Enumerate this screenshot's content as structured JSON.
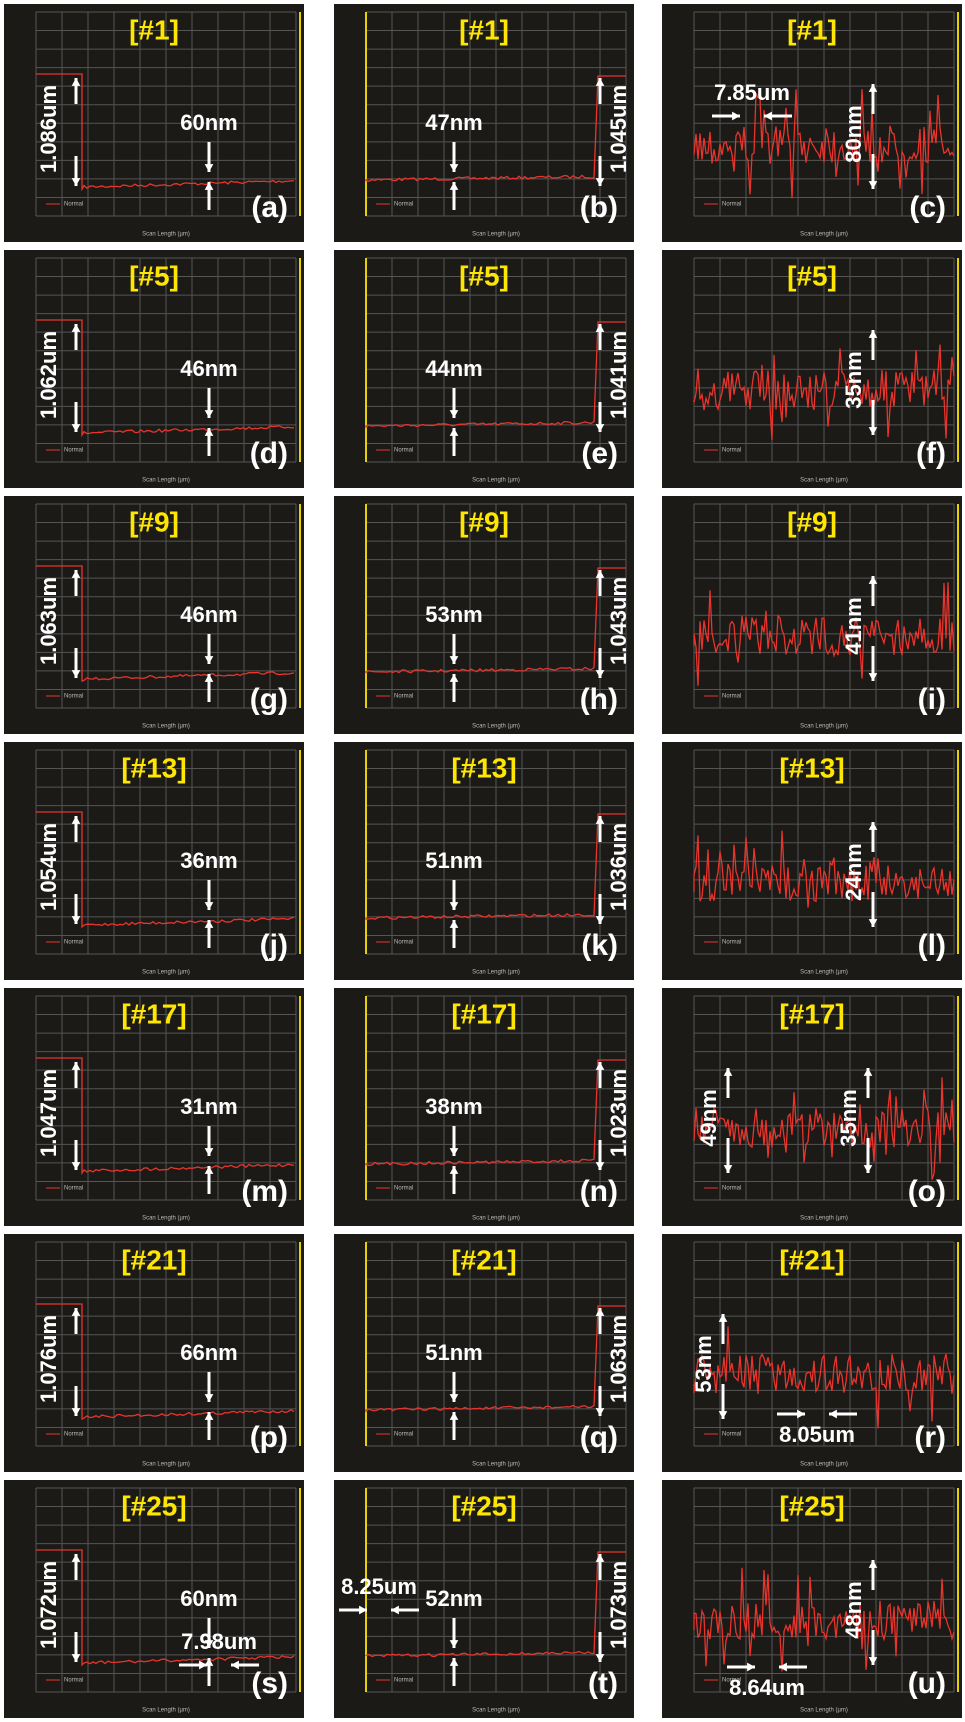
{
  "legend": "Normal",
  "x_axis_label": "Scan Length (µm)",
  "panels": [
    {
      "label": "(a)",
      "sample": "[#1]",
      "step": "1.086um",
      "roughness": [
        "60nm"
      ]
    },
    {
      "label": "(b)",
      "sample": "[#1]",
      "step": "1.045um",
      "roughness": [
        "47nm"
      ]
    },
    {
      "label": "(c)",
      "sample": "[#1]",
      "roughness": [
        "80nm"
      ],
      "width": "7.85um"
    },
    {
      "label": "(d)",
      "sample": "[#5]",
      "step": "1.062um",
      "roughness": [
        "46nm"
      ]
    },
    {
      "label": "(e)",
      "sample": "[#5]",
      "step": "1.041um",
      "roughness": [
        "44nm"
      ]
    },
    {
      "label": "(f)",
      "sample": "[#5]",
      "roughness": [
        "35nm"
      ]
    },
    {
      "label": "(g)",
      "sample": "[#9]",
      "step": "1.063um",
      "roughness": [
        "46nm"
      ]
    },
    {
      "label": "(h)",
      "sample": "[#9]",
      "step": "1.043um",
      "roughness": [
        "53nm"
      ]
    },
    {
      "label": "(i)",
      "sample": "[#9]",
      "roughness": [
        "41nm"
      ]
    },
    {
      "label": "(j)",
      "sample": "[#13]",
      "step": "1.054um",
      "roughness": [
        "36nm"
      ]
    },
    {
      "label": "(k)",
      "sample": "[#13]",
      "step": "1.036um",
      "roughness": [
        "51nm"
      ]
    },
    {
      "label": "(l)",
      "sample": "[#13]",
      "roughness": [
        "24nm"
      ]
    },
    {
      "label": "(m)",
      "sample": "[#17]",
      "step": "1.047um",
      "roughness": [
        "31nm"
      ]
    },
    {
      "label": "(n)",
      "sample": "[#17]",
      "step": "1.023um",
      "roughness": [
        "38nm"
      ]
    },
    {
      "label": "(o)",
      "sample": "[#17]",
      "roughness": [
        "49nm",
        "35nm"
      ]
    },
    {
      "label": "(p)",
      "sample": "[#21]",
      "step": "1.076um",
      "roughness": [
        "66nm"
      ]
    },
    {
      "label": "(q)",
      "sample": "[#21]",
      "step": "1.063um",
      "roughness": [
        "51nm"
      ]
    },
    {
      "label": "(r)",
      "sample": "[#21]",
      "roughness": [
        "53nm"
      ],
      "width": "8.05um"
    },
    {
      "label": "(s)",
      "sample": "[#25]",
      "step": "1.072um",
      "roughness": [
        "60nm"
      ],
      "width": "7.98um"
    },
    {
      "label": "(t)",
      "sample": "[#25]",
      "step": "1.073um",
      "roughness": [
        "52nm"
      ],
      "width": "8.25um"
    },
    {
      "label": "(u)",
      "sample": "[#25]",
      "roughness": [
        "48nm"
      ],
      "width": "8.64um"
    }
  ]
}
